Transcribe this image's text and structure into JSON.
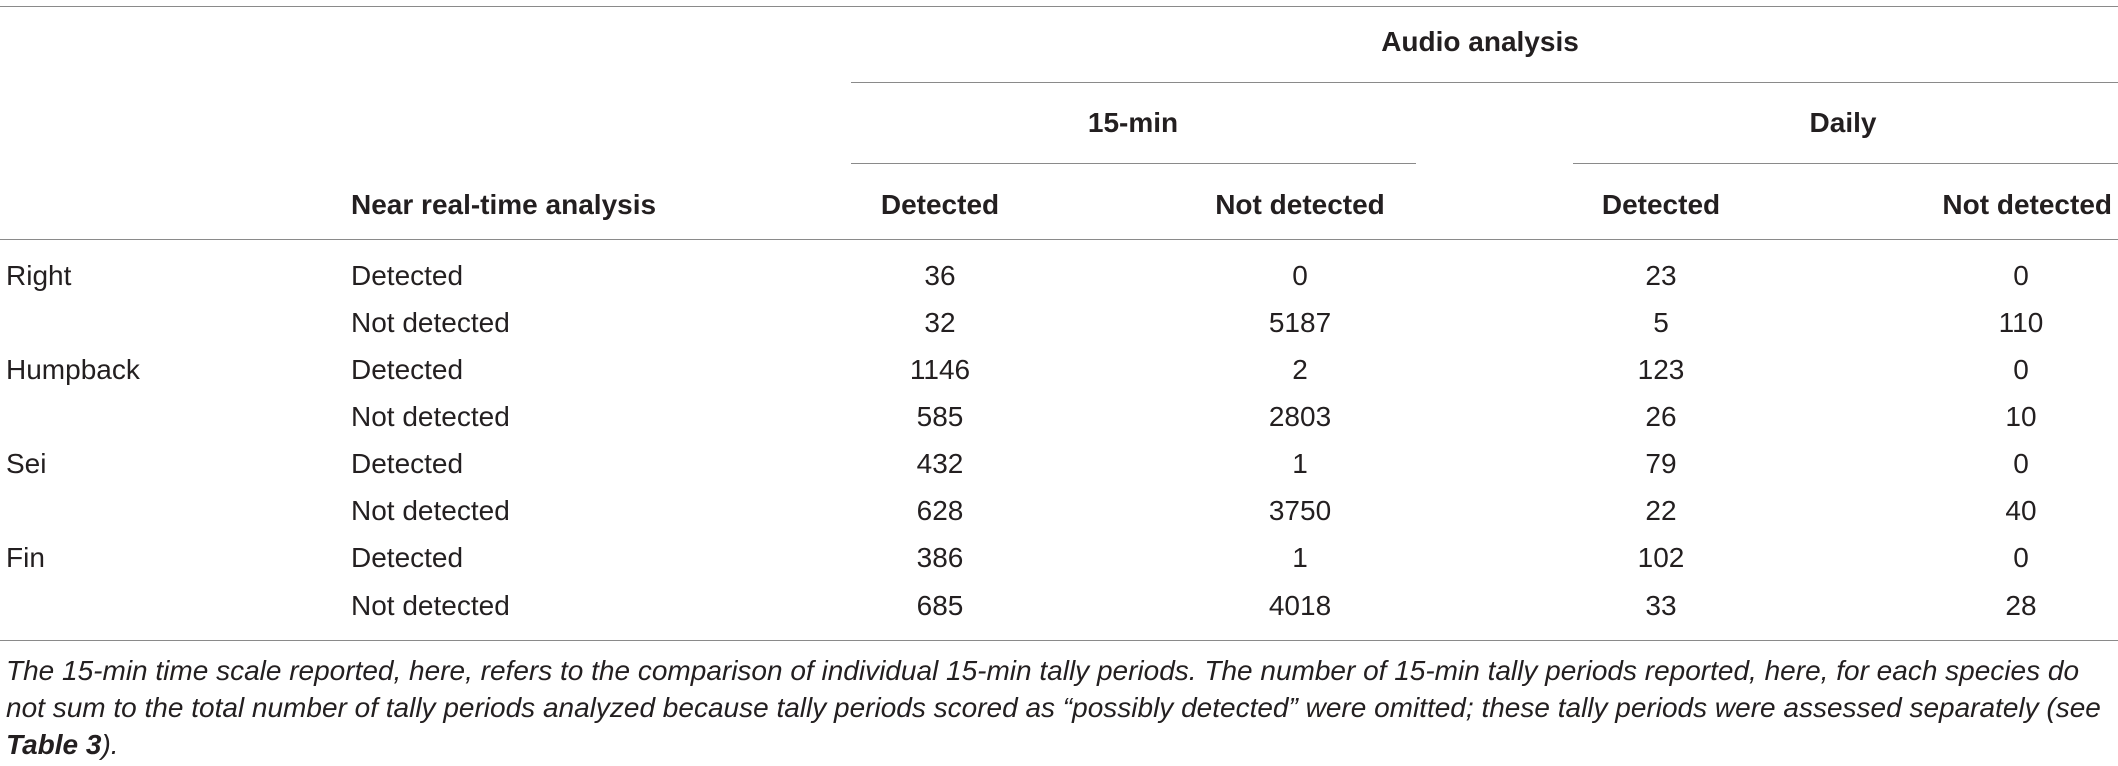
{
  "table": {
    "header": {
      "group_label": "Audio analysis",
      "scale_15min": "15-min",
      "scale_daily": "Daily",
      "near_realtime": "Near real-time analysis",
      "detected": "Detected",
      "not_detected": "Not detected"
    },
    "rows": [
      {
        "species": "Right",
        "nrt": "Detected",
        "m15_det": "36",
        "m15_not": "0",
        "d_det": "23",
        "d_not": "0"
      },
      {
        "species": "",
        "nrt": "Not detected",
        "m15_det": "32",
        "m15_not": "5187",
        "d_det": "5",
        "d_not": "110"
      },
      {
        "species": "Humpback",
        "nrt": "Detected",
        "m15_det": "1146",
        "m15_not": "2",
        "d_det": "123",
        "d_not": "0"
      },
      {
        "species": "",
        "nrt": "Not detected",
        "m15_det": "585",
        "m15_not": "2803",
        "d_det": "26",
        "d_not": "10"
      },
      {
        "species": "Sei",
        "nrt": "Detected",
        "m15_det": "432",
        "m15_not": "1",
        "d_det": "79",
        "d_not": "0"
      },
      {
        "species": "",
        "nrt": "Not detected",
        "m15_det": "628",
        "m15_not": "3750",
        "d_det": "22",
        "d_not": "40"
      },
      {
        "species": "Fin",
        "nrt": "Detected",
        "m15_det": "386",
        "m15_not": "1",
        "d_det": "102",
        "d_not": "0"
      },
      {
        "species": "",
        "nrt": "Not detected",
        "m15_det": "685",
        "m15_not": "4018",
        "d_det": "33",
        "d_not": "28"
      }
    ]
  },
  "footnote": {
    "text_before": "The 15-min time scale reported, here, refers to the comparison of individual 15-min tally periods. The number of 15-min tally periods reported, here, for each species do not sum to the total number of tally periods analyzed because tally periods scored as “possibly detected” were omitted; these tally periods were assessed separately (see ",
    "ref": "Table 3",
    "text_after": ")."
  }
}
